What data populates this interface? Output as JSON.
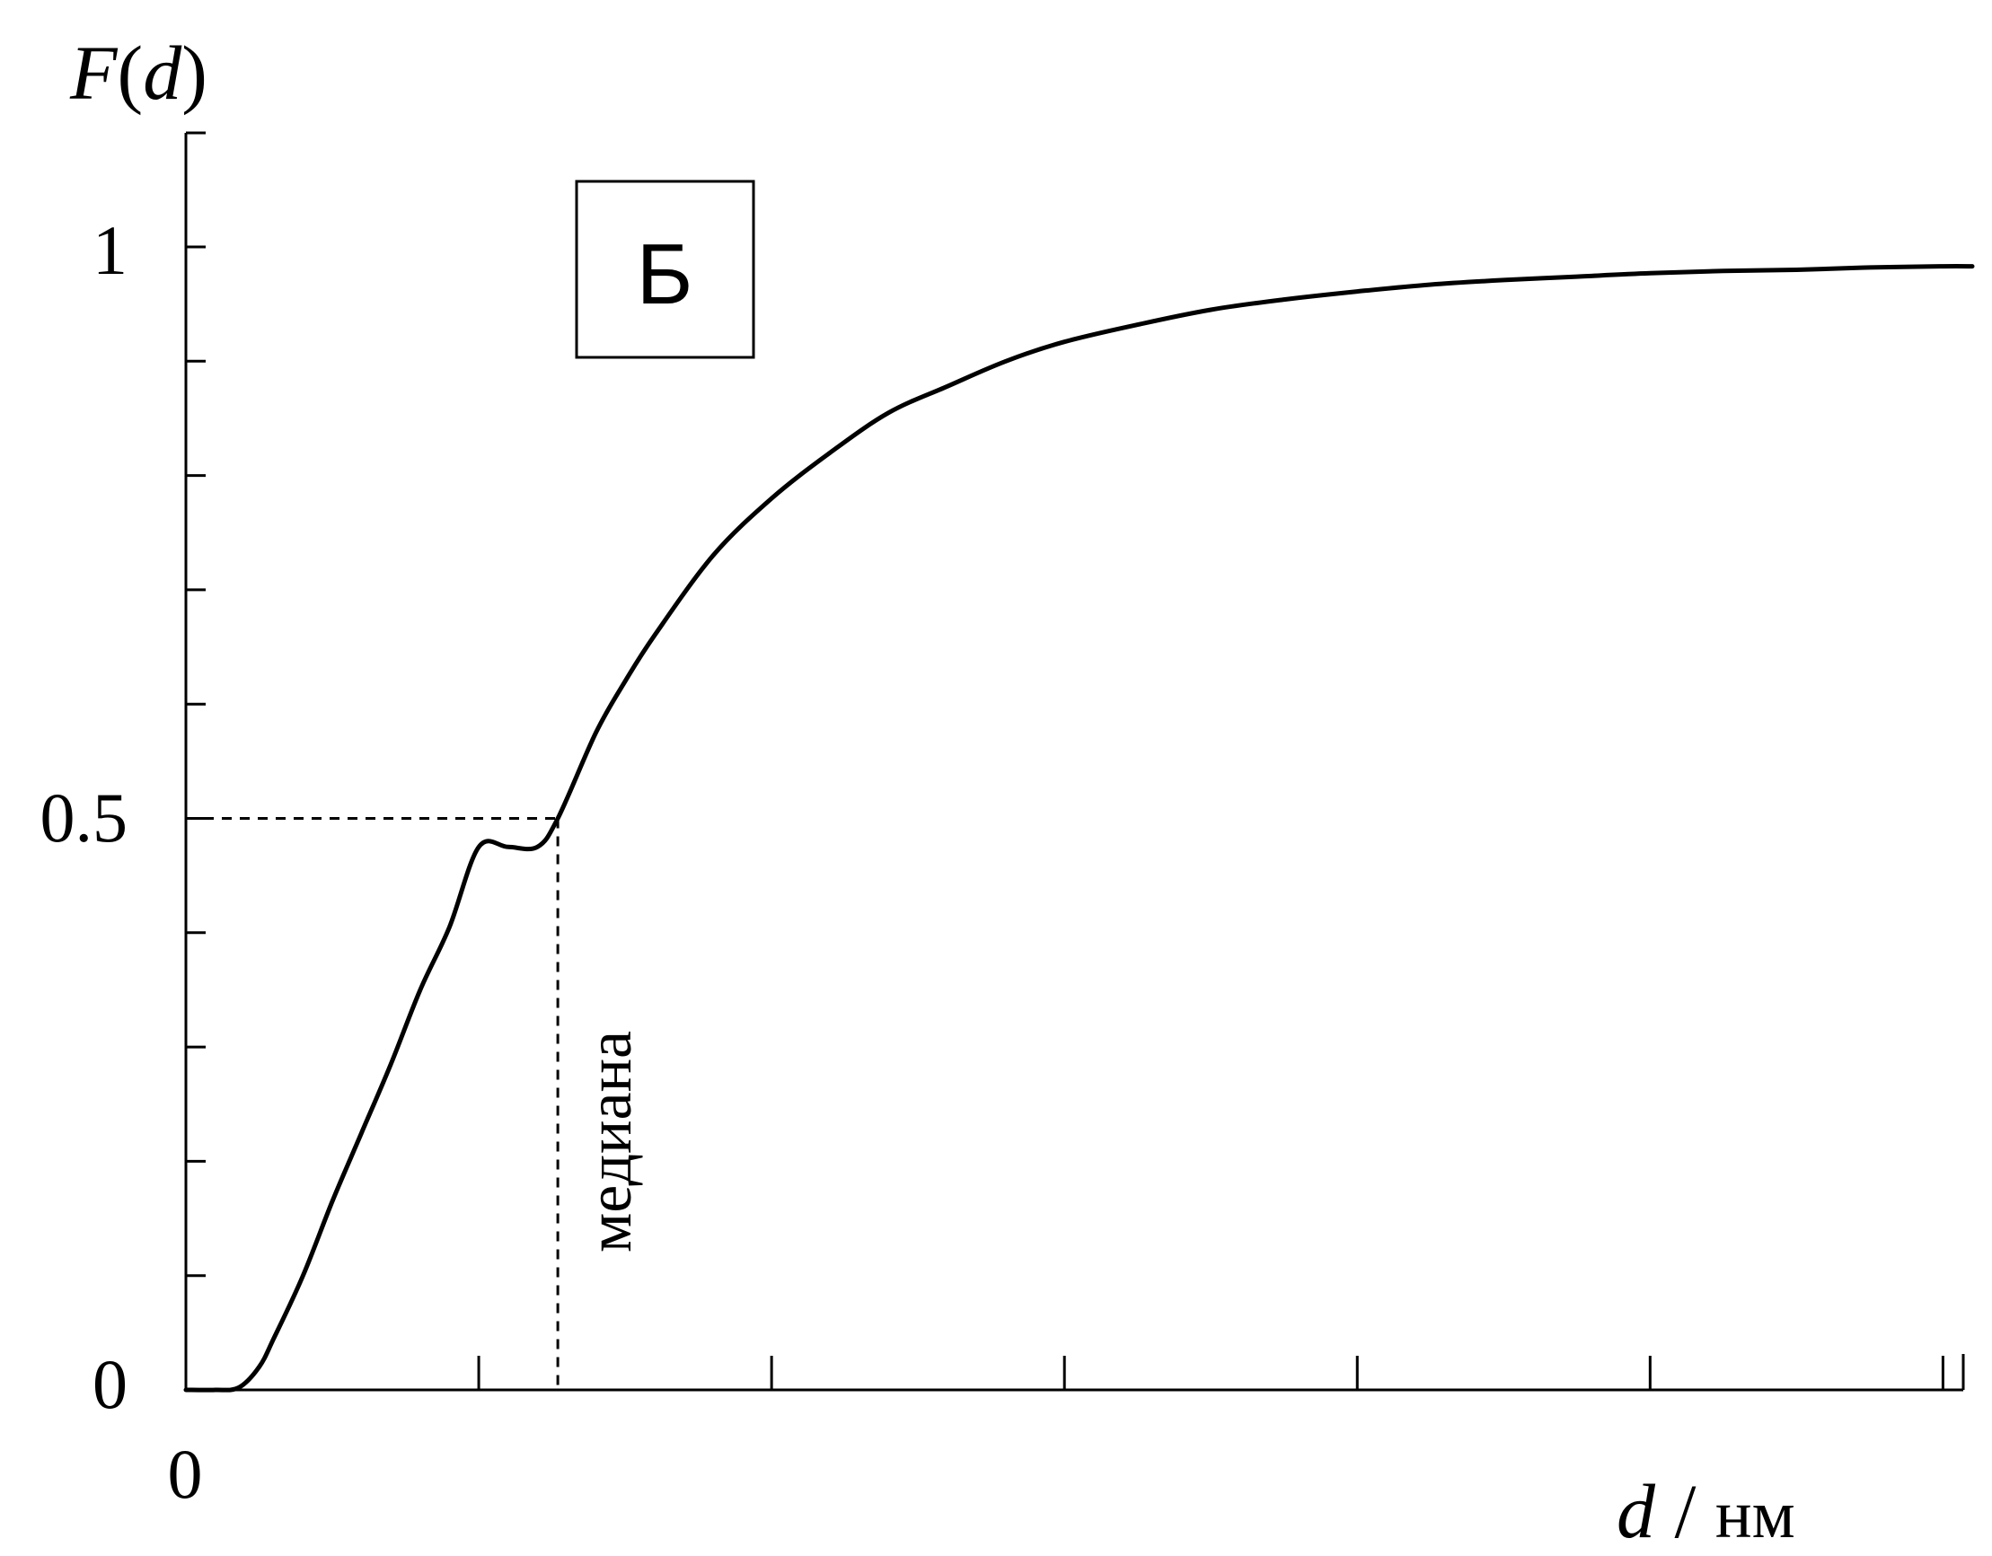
{
  "chart_data": {
    "type": "line",
    "ylabel_func": "F",
    "ylabel_var": "d",
    "xlabel_var": "d",
    "xlabel_unit": "нм",
    "xtick_label": "0",
    "yticks": [
      {
        "value": 0,
        "label": "0"
      },
      {
        "value": 0.5,
        "label": "0.5"
      },
      {
        "value": 1,
        "label": "1"
      }
    ],
    "xlim": [
      0,
      6.1
    ],
    "ylim": [
      0,
      1.1
    ],
    "x_major_ticks": [
      0,
      1,
      2,
      3,
      4,
      5,
      6
    ],
    "y_minor_step": 0.1,
    "panel_label": "Б",
    "median": {
      "x": 1.27,
      "y": 0.5,
      "label": "медиана"
    },
    "series": [
      {
        "x": [
          0,
          0.1,
          0.18,
          0.25,
          0.3,
          0.4,
          0.5,
          0.6,
          0.7,
          0.8,
          0.9,
          1.0,
          1.1,
          1.2,
          1.27,
          1.4,
          1.5,
          1.6,
          1.8,
          2.0,
          2.2,
          2.4,
          2.6,
          2.8,
          3.0,
          3.25,
          3.5,
          3.75,
          4.0,
          4.25,
          4.5,
          4.75,
          5.0,
          5.25,
          5.5,
          5.75,
          6.0,
          6.1
        ],
        "y": [
          0,
          0,
          0.002,
          0.02,
          0.045,
          0.1,
          0.165,
          0.225,
          0.285,
          0.35,
          0.405,
          0.475,
          0.44,
          0.475,
          0.5,
          0.575,
          0.62,
          0.66,
          0.73,
          0.78,
          0.82,
          0.855,
          0.878,
          0.9,
          0.917,
          0.932,
          0.945,
          0.954,
          0.961,
          0.967,
          0.971,
          0.974,
          0.977,
          0.979,
          0.98,
          0.982,
          0.983,
          0.983
        ]
      }
    ]
  }
}
